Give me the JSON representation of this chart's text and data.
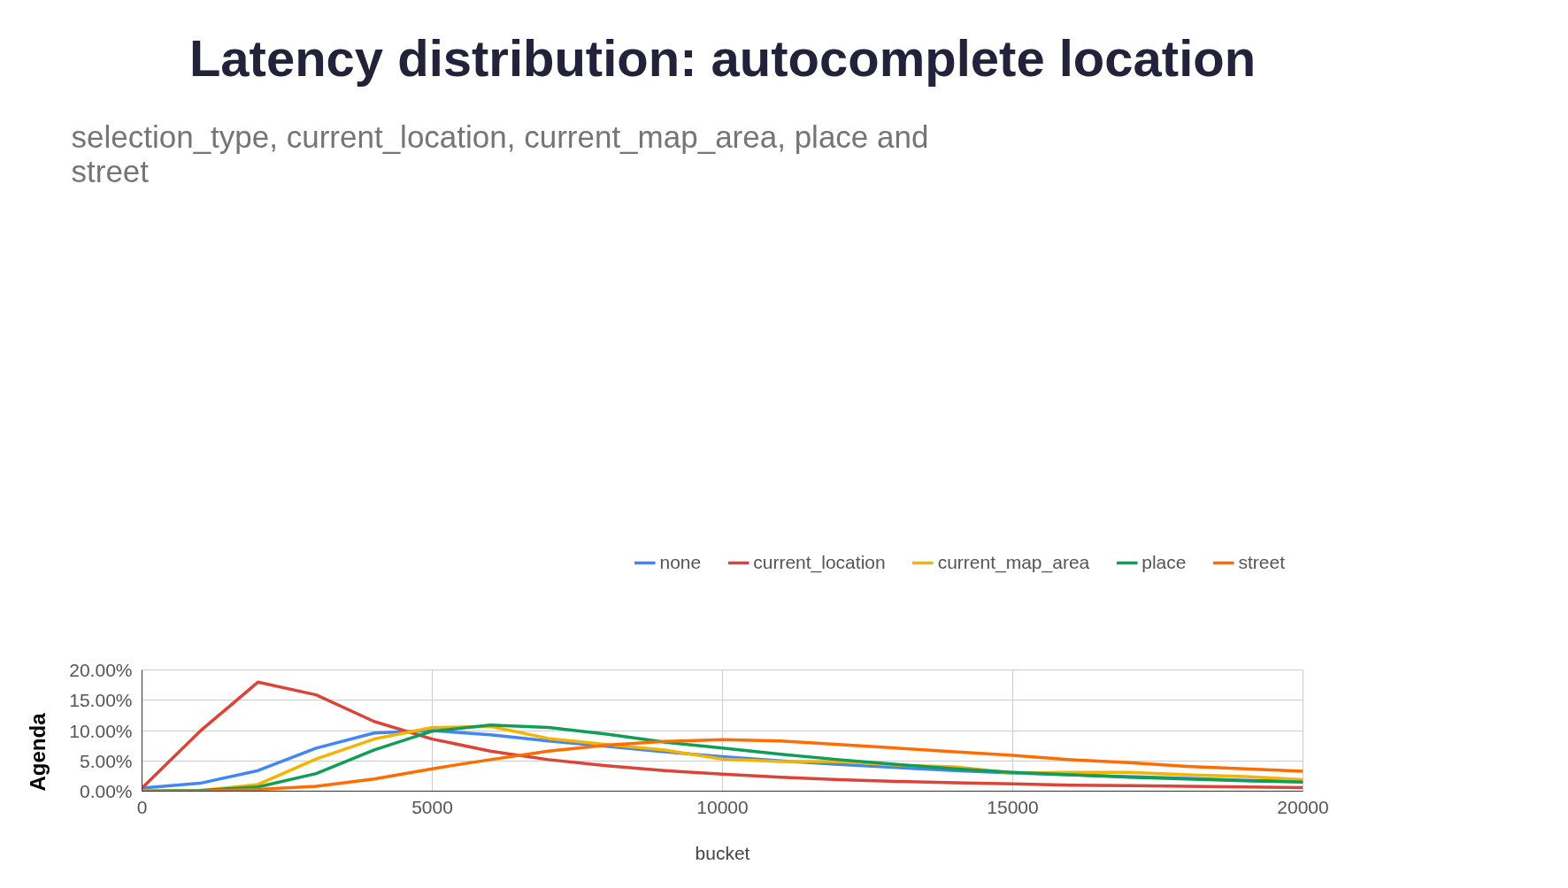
{
  "chart_data": {
    "type": "line",
    "title": "Latency distribution: autocomplete location",
    "subtitle": "selection_type, current_location, current_map_area, place and\nstreet",
    "xlabel": "bucket",
    "annotations": [
      "Agenda"
    ],
    "x": [
      0,
      1000,
      2000,
      3000,
      4000,
      5000,
      6000,
      7000,
      8000,
      9000,
      10000,
      11000,
      12000,
      13000,
      14000,
      15000,
      16000,
      17000,
      18000,
      19000,
      20000
    ],
    "series": [
      {
        "name": "none",
        "color": "#4285f4",
        "values": [
          0.5,
          1.3,
          3.4,
          7.1,
          9.6,
          10.0,
          9.3,
          8.3,
          7.4,
          6.5,
          5.7,
          5.0,
          4.4,
          3.9,
          3.4,
          3.0,
          2.7,
          2.4,
          2.1,
          1.8,
          1.6
        ]
      },
      {
        "name": "current_location",
        "color": "#db4437",
        "values": [
          0.5,
          9.9,
          18.0,
          15.9,
          11.5,
          8.6,
          6.6,
          5.2,
          4.2,
          3.4,
          2.8,
          2.3,
          1.9,
          1.6,
          1.4,
          1.2,
          1.0,
          0.9,
          0.8,
          0.7,
          0.6
        ]
      },
      {
        "name": "current_map_area",
        "color": "#f4b400",
        "values": [
          0.0,
          0.1,
          1.1,
          5.3,
          8.6,
          10.5,
          10.7,
          8.7,
          7.7,
          6.8,
          5.3,
          4.9,
          4.9,
          4.3,
          4.0,
          3.0,
          3.1,
          3.1,
          2.7,
          2.4,
          1.9
        ]
      },
      {
        "name": "place",
        "color": "#0f9d58",
        "values": [
          0.0,
          0.1,
          0.7,
          2.9,
          6.8,
          9.9,
          10.9,
          10.5,
          9.4,
          8.1,
          7.1,
          6.1,
          5.2,
          4.4,
          3.7,
          3.1,
          2.7,
          2.3,
          2.0,
          1.7,
          1.5
        ]
      },
      {
        "name": "street",
        "color": "#ff6d00",
        "values": [
          0.0,
          0.0,
          0.3,
          0.8,
          2.0,
          3.7,
          5.2,
          6.6,
          7.6,
          8.2,
          8.5,
          8.3,
          7.7,
          7.1,
          6.5,
          5.9,
          5.2,
          4.7,
          4.1,
          3.7,
          3.3
        ]
      }
    ],
    "xlim": [
      0,
      20000
    ],
    "xticks": [
      0,
      5000,
      10000,
      15000,
      20000
    ],
    "ylim": [
      0,
      20
    ],
    "yticks": [
      {
        "value": 0,
        "label": "0.00%"
      },
      {
        "value": 5,
        "label": "5.00%"
      },
      {
        "value": 10,
        "label": "10.00%"
      },
      {
        "value": 15,
        "label": "15.00%"
      },
      {
        "value": 20,
        "label": "20.00%"
      }
    ],
    "grid": true,
    "legend": "top",
    "line_style": "solid"
  }
}
